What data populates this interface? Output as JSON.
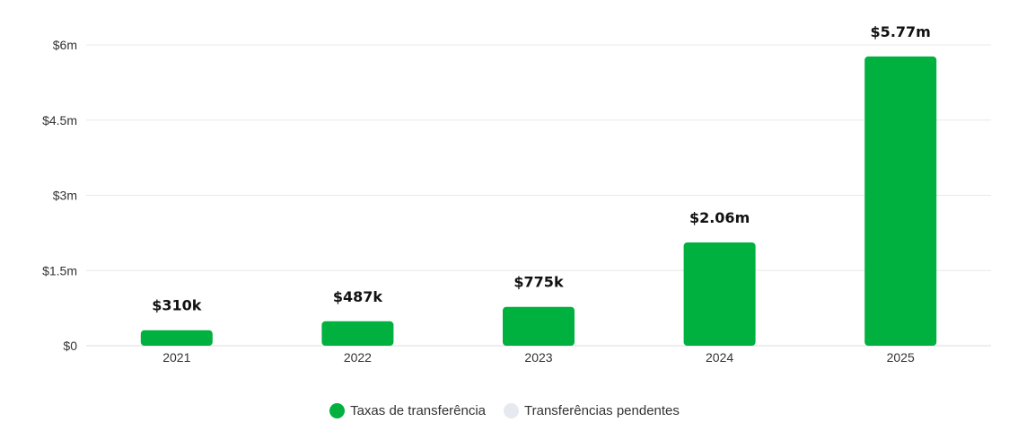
{
  "chart_data": {
    "type": "bar",
    "categories": [
      "2021",
      "2022",
      "2023",
      "2024",
      "2025"
    ],
    "series": [
      {
        "name": "Taxas de transferência",
        "color": "#00b140",
        "values": [
          0.31,
          0.487,
          0.775,
          2.06,
          5.77
        ],
        "labels": [
          "$310k",
          "$487k",
          "$775k",
          "$2.06m",
          "$5.77m"
        ]
      },
      {
        "name": "Transferências pendentes",
        "color": "#e6e9ef",
        "values": [
          0,
          0,
          0,
          0,
          0
        ],
        "labels": [
          "",
          "",
          "",
          "",
          ""
        ]
      }
    ],
    "y_ticks": [
      0,
      1.5,
      3,
      4.5,
      6
    ],
    "y_tick_labels": [
      "$0",
      "$1.5m",
      "$3m",
      "$4.5m",
      "$6m"
    ],
    "ylim": [
      0,
      6
    ],
    "y_unit": "millions USD",
    "grid": true,
    "legend_position": "bottom-center"
  }
}
